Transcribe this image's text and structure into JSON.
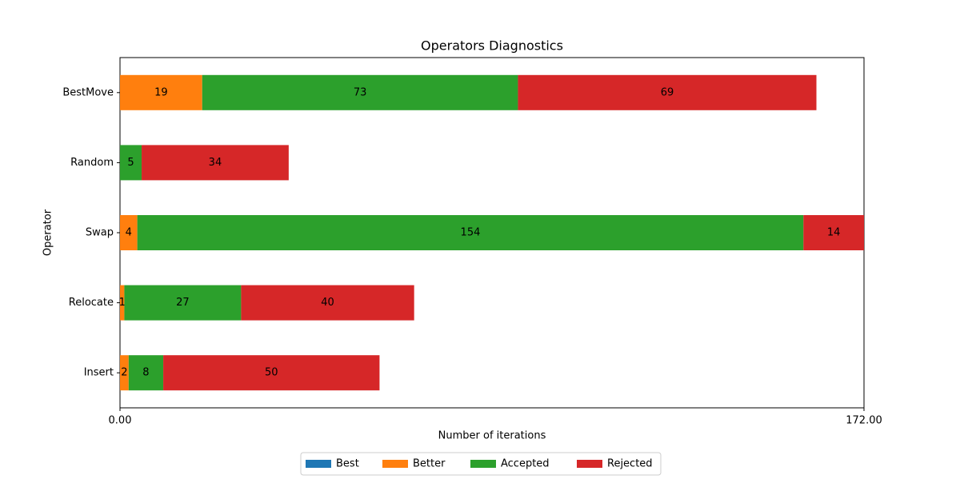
{
  "chart_data": {
    "type": "stacked-barh",
    "title": "Operators Diagnostics",
    "x_label": "Number of iterations",
    "y_label": "Operator",
    "categories": [
      "BestMove",
      "Random",
      "Swap",
      "Relocate",
      "Insert"
    ],
    "series": [
      {
        "name": "Best",
        "color": "#1f77b4",
        "values": [
          0,
          0,
          0,
          0,
          0
        ]
      },
      {
        "name": "Better",
        "color": "#ff7f0e",
        "values": [
          19,
          0,
          4,
          1,
          2
        ]
      },
      {
        "name": "Accepted",
        "color": "#2ca02c",
        "values": [
          73,
          5,
          154,
          27,
          8
        ]
      },
      {
        "name": "Rejected",
        "color": "#d62728",
        "values": [
          69,
          34,
          14,
          40,
          50
        ]
      }
    ],
    "xlim": [
      0,
      172
    ],
    "xticks": [
      {
        "value": 0,
        "label": "0.00"
      },
      {
        "value": 172,
        "label": "172.00"
      }
    ],
    "legend": "bottom"
  }
}
